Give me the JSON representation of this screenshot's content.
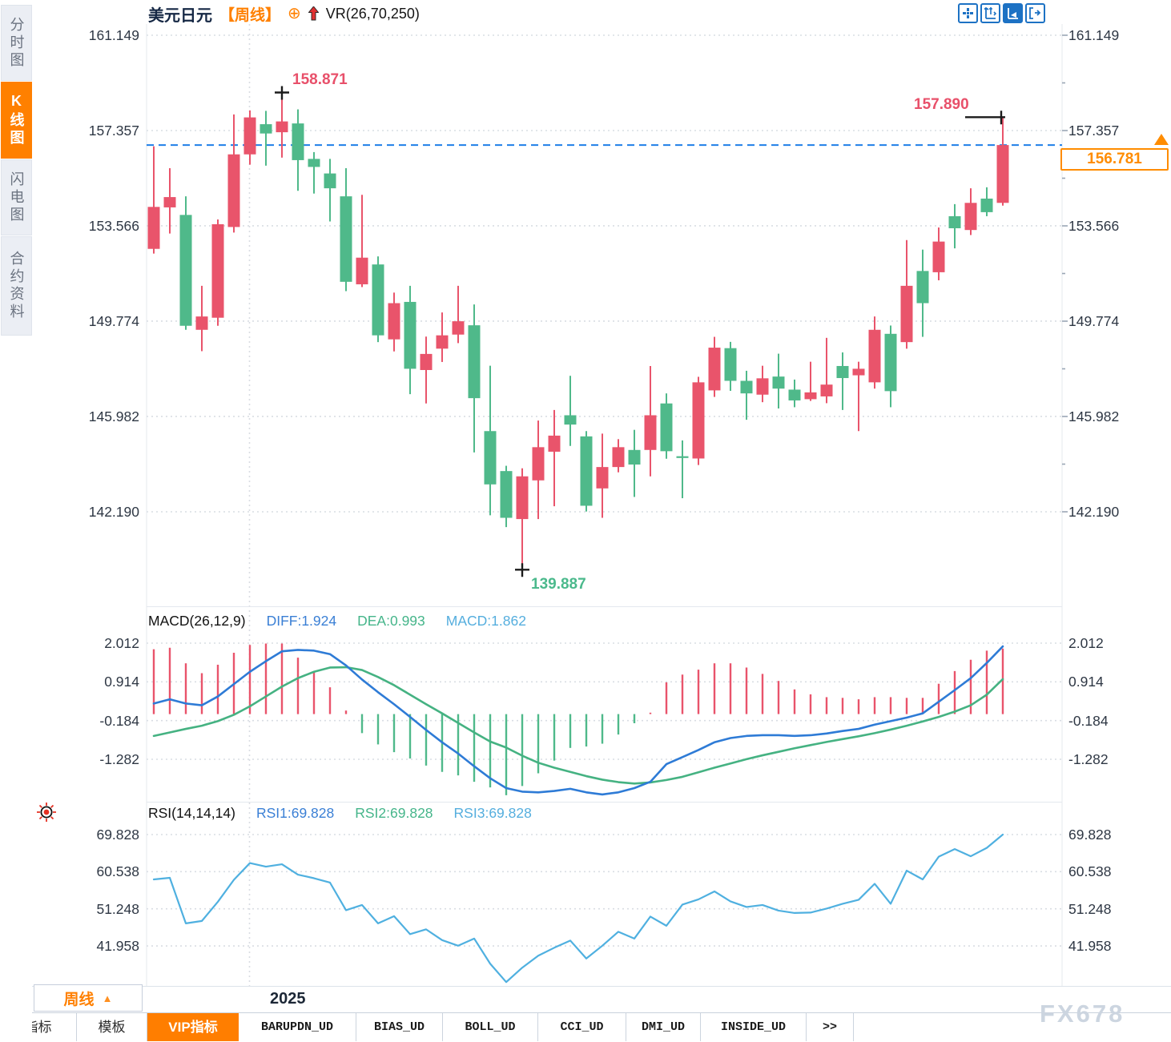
{
  "header": {
    "symbol": "美元日元",
    "period_tag": "【周线】",
    "indicator_label": "VR(26,70,250)"
  },
  "sidebar": {
    "items": [
      {
        "label": "分时图",
        "active": false
      },
      {
        "label": "K线图",
        "active": true
      },
      {
        "label": "闪电图",
        "active": false
      },
      {
        "label": "合约资料",
        "active": false
      }
    ]
  },
  "price_panel": {
    "axis_labels": [
      "161.149",
      "157.357",
      "153.566",
      "149.774",
      "145.982",
      "142.190"
    ],
    "annotations": {
      "swing_high": "158.871",
      "swing_low": "139.887",
      "latest_high": "157.890",
      "current_price": "156.781"
    }
  },
  "macd_panel": {
    "title": "MACD(26,12,9)",
    "diff_label": "DIFF:1.924",
    "dea_label": "DEA:0.993",
    "macd_label": "MACD:1.862",
    "axis_labels": [
      "2.012",
      "0.914",
      "-0.184",
      "-1.282"
    ]
  },
  "rsi_panel": {
    "title": "RSI(14,14,14)",
    "rsi1_label": "RSI1:69.828",
    "rsi2_label": "RSI2:69.828",
    "rsi3_label": "RSI3:69.828",
    "axis_labels": [
      "69.828",
      "60.538",
      "51.248",
      "41.958"
    ]
  },
  "footer": {
    "period_button": "周线",
    "period_arrow": "▲",
    "year_label": "2025",
    "tabs": [
      "指标",
      "模板",
      "VIP指标",
      "BARUPDN_UD",
      "BIAS_UD",
      "BOLL_UD",
      "CCI_UD",
      "DMI_UD",
      "INSIDE_UD",
      ">>"
    ],
    "active_tab": "VIP指标",
    "watermark": "FX678"
  },
  "colors": {
    "up": "#e9546b",
    "down": "#4fb98a",
    "diff_line": "#2e7bd6",
    "dea_line": "#45b282",
    "rsi_line": "#4fb0e0",
    "current_line": "#1f7fe8",
    "grid": "#d9dde3",
    "marker": "#1b1b1b",
    "accent_orange": "#ff8000",
    "label_blue": "#3a7fd5",
    "label_green": "#45b58a",
    "label_lightblue": "#55aede"
  },
  "chart_data": {
    "type": "candlestick",
    "symbol": "美元日元",
    "period": "周线",
    "price_axis": [
      161.149,
      157.357,
      153.566,
      149.774,
      145.982,
      142.19
    ],
    "candles": [
      [
        152.65,
        156.73,
        152.46,
        154.32
      ],
      [
        154.3,
        155.86,
        153.26,
        154.71
      ],
      [
        154.0,
        154.74,
        149.43,
        149.59
      ],
      [
        149.43,
        151.18,
        148.58,
        149.96
      ],
      [
        149.91,
        153.82,
        149.59,
        153.63
      ],
      [
        153.52,
        158.0,
        153.3,
        156.41
      ],
      [
        156.41,
        158.16,
        156.0,
        157.88
      ],
      [
        157.61,
        158.14,
        155.96,
        157.24
      ],
      [
        157.29,
        158.87,
        156.28,
        157.72
      ],
      [
        157.64,
        158.2,
        154.96,
        156.18
      ],
      [
        156.23,
        156.5,
        154.85,
        155.91
      ],
      [
        155.65,
        156.23,
        153.74,
        155.06
      ],
      [
        154.74,
        155.86,
        150.97,
        151.34
      ],
      [
        151.24,
        154.8,
        151.13,
        152.3
      ],
      [
        152.03,
        152.35,
        148.94,
        149.21
      ],
      [
        149.05,
        150.91,
        148.57,
        150.49
      ],
      [
        150.54,
        151.18,
        146.87,
        147.88
      ],
      [
        147.83,
        149.16,
        146.5,
        148.47
      ],
      [
        148.68,
        150.12,
        148.15,
        149.21
      ],
      [
        149.24,
        151.18,
        148.9,
        149.77
      ],
      [
        149.61,
        150.44,
        144.55,
        146.71
      ],
      [
        145.4,
        148.0,
        142.05,
        143.28
      ],
      [
        143.81,
        144.02,
        141.58,
        141.95
      ],
      [
        141.9,
        143.92,
        139.89,
        143.6
      ],
      [
        143.44,
        145.82,
        141.9,
        144.76
      ],
      [
        144.58,
        146.24,
        142.41,
        145.22
      ],
      [
        146.03,
        147.6,
        144.81,
        145.66
      ],
      [
        145.19,
        145.4,
        142.2,
        142.43
      ],
      [
        143.12,
        145.3,
        141.95,
        143.97
      ],
      [
        143.97,
        145.08,
        143.76,
        144.76
      ],
      [
        144.65,
        145.45,
        142.78,
        144.07
      ],
      [
        144.65,
        147.99,
        143.6,
        146.03
      ],
      [
        146.5,
        146.9,
        144.3,
        144.6
      ],
      [
        144.4,
        145.03,
        142.73,
        144.33
      ],
      [
        144.31,
        147.56,
        144.05,
        147.34
      ],
      [
        147.02,
        149.15,
        146.76,
        148.72
      ],
      [
        148.7,
        148.95,
        147.0,
        147.4
      ],
      [
        147.4,
        147.8,
        145.85,
        146.9
      ],
      [
        146.85,
        148.0,
        146.55,
        147.5
      ],
      [
        147.57,
        148.48,
        146.3,
        147.09
      ],
      [
        147.05,
        147.45,
        146.35,
        146.62
      ],
      [
        146.67,
        148.16,
        146.6,
        146.94
      ],
      [
        146.78,
        149.11,
        146.51,
        147.25
      ],
      [
        147.99,
        148.53,
        146.24,
        147.51
      ],
      [
        147.62,
        148.16,
        145.4,
        147.88
      ],
      [
        147.34,
        149.96,
        147.09,
        149.43
      ],
      [
        149.27,
        149.6,
        146.35,
        146.99
      ],
      [
        148.94,
        153.0,
        148.68,
        151.18
      ],
      [
        151.77,
        152.62,
        149.15,
        150.49
      ],
      [
        151.72,
        153.5,
        151.4,
        152.94
      ],
      [
        153.95,
        154.43,
        152.67,
        153.47
      ],
      [
        153.4,
        155.06,
        153.2,
        154.48
      ],
      [
        154.65,
        155.1,
        153.95,
        154.11
      ],
      [
        154.48,
        157.89,
        154.37,
        156.78
      ]
    ],
    "macd": {
      "axis": [
        2.012,
        0.914,
        -0.184,
        -1.282
      ],
      "diff_current": 1.924,
      "dea_current": 0.993,
      "macd_current": 1.862,
      "diff": [
        0.3,
        0.42,
        0.3,
        0.25,
        0.5,
        0.85,
        1.2,
        1.5,
        1.78,
        1.82,
        1.8,
        1.7,
        1.38,
        0.98,
        0.62,
        0.28,
        -0.08,
        -0.45,
        -0.8,
        -1.12,
        -1.48,
        -1.82,
        -2.1,
        -2.2,
        -2.22,
        -2.18,
        -2.12,
        -2.22,
        -2.28,
        -2.22,
        -2.1,
        -1.92,
        -1.42,
        -1.22,
        -1.02,
        -0.8,
        -0.68,
        -0.62,
        -0.6,
        -0.6,
        -0.62,
        -0.6,
        -0.55,
        -0.48,
        -0.42,
        -0.3,
        -0.2,
        -0.1,
        0.02,
        0.35,
        0.68,
        1.02,
        1.45,
        1.92
      ],
      "dea": [
        -0.62,
        -0.52,
        -0.42,
        -0.33,
        -0.2,
        -0.02,
        0.22,
        0.5,
        0.78,
        1.02,
        1.2,
        1.32,
        1.33,
        1.25,
        1.05,
        0.82,
        0.55,
        0.28,
        0.02,
        -0.25,
        -0.52,
        -0.78,
        -0.95,
        -1.18,
        -1.38,
        -1.52,
        -1.64,
        -1.76,
        -1.86,
        -1.93,
        -1.97,
        -1.94,
        -1.87,
        -1.78,
        -1.65,
        -1.52,
        -1.4,
        -1.28,
        -1.17,
        -1.07,
        -0.97,
        -0.88,
        -0.79,
        -0.71,
        -0.63,
        -0.54,
        -0.44,
        -0.33,
        -0.21,
        -0.08,
        0.07,
        0.25,
        0.55,
        0.99
      ]
    },
    "rsi": {
      "axis": [
        69.828,
        60.538,
        51.248,
        41.958
      ],
      "rsi1_current": 69.828,
      "rsi2_current": 69.828,
      "rsi3_current": 69.828,
      "values": [
        58.6,
        59.0,
        47.6,
        48.2,
        53.0,
        58.5,
        62.7,
        61.8,
        62.4,
        59.8,
        58.9,
        57.8,
        50.9,
        52.2,
        47.6,
        49.4,
        44.9,
        46.1,
        43.4,
        42.0,
        43.8,
        37.5,
        32.9,
        36.5,
        39.5,
        41.5,
        43.3,
        38.8,
        42.0,
        45.5,
        43.8,
        49.3,
        47.0,
        52.3,
        53.6,
        55.6,
        53.1,
        51.7,
        52.2,
        50.8,
        50.2,
        50.3,
        51.3,
        52.5,
        53.5,
        57.5,
        52.5,
        60.8,
        58.6,
        64.3,
        66.2,
        64.4,
        66.5,
        69.828
      ]
    },
    "markers": {
      "swing_high": {
        "index": 8,
        "price": 158.871
      },
      "swing_low": {
        "index": 23,
        "price": 139.887
      },
      "latest_high": {
        "index": 53,
        "price": 157.89
      },
      "current_price": 156.781
    },
    "year_divider_candle_index": 7
  }
}
